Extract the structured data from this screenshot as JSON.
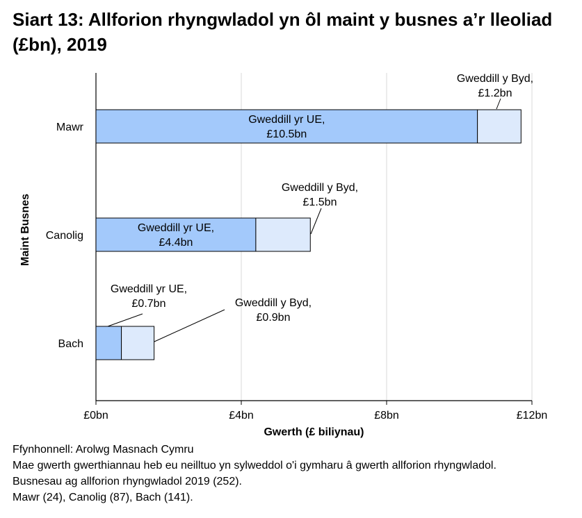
{
  "title": "Siart 13: Allforion rhyngwladol yn ôl maint y busnes a’r lleoliad (£bn), 2019",
  "chart_data": {
    "type": "bar",
    "orientation": "horizontal",
    "stacked": true,
    "title": "Siart 13: Allforion rhyngwladol yn ôl maint y busnes a’r lleoliad (£bn), 2019",
    "xlabel": "Gwerth (£ biliynau)",
    "ylabel": "Maint Busnes",
    "categories": [
      "Mawr",
      "Canolig",
      "Bach"
    ],
    "xlim": [
      0,
      12
    ],
    "xticks": [
      0,
      4,
      8,
      12
    ],
    "xtick_labels": [
      "£0bn",
      "£4bn",
      "£8bn",
      "£12bn"
    ],
    "grid": "vertical",
    "series": [
      {
        "values": [
          10.5,
          4.4,
          0.7
        ],
        "color": "#a3c9fb",
        "labels": [
          [
            "Gweddill yr UE,",
            "£10.5bn"
          ],
          [
            "Gweddill yr UE,",
            "£4.4bn"
          ],
          [
            "Gweddill yr UE,",
            "£0.7bn"
          ]
        ]
      },
      {
        "values": [
          1.2,
          1.5,
          0.9
        ],
        "color": "#ddeafc",
        "labels": [
          [
            "Gweddill y Byd,",
            "£1.2bn"
          ],
          [
            "Gweddill y Byd,",
            "£1.5bn"
          ],
          [
            "Gweddill y Byd,",
            "£0.9bn"
          ]
        ]
      }
    ]
  },
  "notes": [
    "Ffynhonnell: Arolwg Masnach Cymru",
    "Mae gwerth gwerthiannau heb eu neilltuo yn sylweddol o'i gymharu â gwerth allforion rhyngwladol.",
    "Busnesau ag allforion rhyngwladol 2019 (252).",
    "Mawr (24), Canolig (87), Bach (141)."
  ]
}
